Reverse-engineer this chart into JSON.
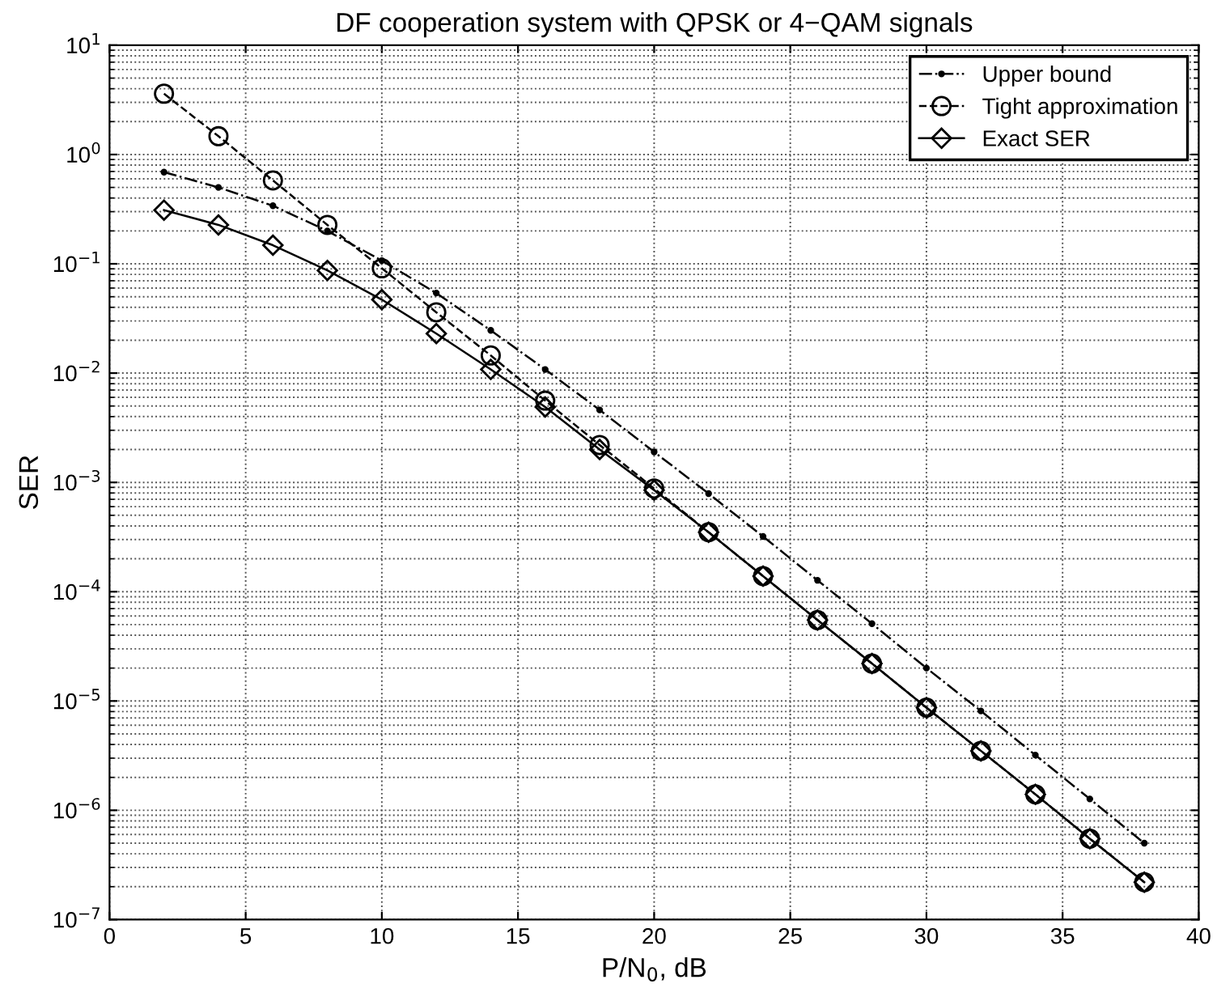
{
  "chart_data": {
    "type": "line",
    "title": "DF cooperation system with QPSK or 4−QAM signals",
    "xlabel": "P/N$_{0}$, dB",
    "ylabel": "SER",
    "x": [
      2,
      4,
      6,
      8,
      10,
      12,
      14,
      16,
      18,
      20,
      22,
      24,
      26,
      28,
      30,
      32,
      34,
      36,
      38
    ],
    "series": [
      {
        "name": "Upper bound",
        "color": "#000000",
        "line_style": "dashdot",
        "marker": "point",
        "values": [
          0.69,
          0.5,
          0.34,
          0.2,
          0.107,
          0.054,
          0.0246,
          0.0108,
          0.0046,
          0.0019,
          0.00079,
          0.00032,
          0.000127,
          5.1e-05,
          2e-05,
          8.1e-06,
          3.2e-06,
          1.27e-06,
          5e-07
        ]
      },
      {
        "name": "Tight approximation",
        "color": "#000000",
        "line_style": "dashed",
        "marker": "circle",
        "values": [
          3.6,
          1.47,
          0.58,
          0.227,
          0.091,
          0.036,
          0.0145,
          0.0056,
          0.0022,
          0.00088,
          0.00035,
          0.000139,
          5.5e-05,
          2.2e-05,
          8.7e-06,
          3.5e-06,
          1.4e-06,
          5.5e-07,
          2.2e-07
        ]
      },
      {
        "name": "Exact SER",
        "color": "#000000",
        "line_style": "solid",
        "marker": "diamond",
        "values": [
          0.31,
          0.227,
          0.148,
          0.087,
          0.047,
          0.023,
          0.0108,
          0.0049,
          0.002,
          0.00085,
          0.00035,
          0.000139,
          5.5e-05,
          2.2e-05,
          8.7e-06,
          3.5e-06,
          1.4e-06,
          5.5e-07,
          2.2e-07
        ]
      }
    ],
    "log": "y",
    "xlim": [
      0,
      40
    ],
    "xticks": [
      0,
      5,
      10,
      15,
      20,
      25,
      30,
      35,
      40
    ],
    "ylim": [
      1e-07,
      10
    ],
    "yticks": [
      {
        "value": 1e-07,
        "label": "10$^{−7}$"
      },
      {
        "value": 1e-06,
        "label": "10$^{−6}$"
      },
      {
        "value": 1e-05,
        "label": "10$^{−5}$"
      },
      {
        "value": 0.0001,
        "label": "10$^{−4}$"
      },
      {
        "value": 0.001,
        "label": "10$^{−3}$"
      },
      {
        "value": 0.01,
        "label": "10$^{−2}$"
      },
      {
        "value": 0.1,
        "label": "10$^{−1}$"
      },
      {
        "value": 1,
        "label": "10$^{0}$"
      },
      {
        "value": 10,
        "label": "10$^{1}$"
      }
    ],
    "grid": true,
    "legend": "top right"
  }
}
